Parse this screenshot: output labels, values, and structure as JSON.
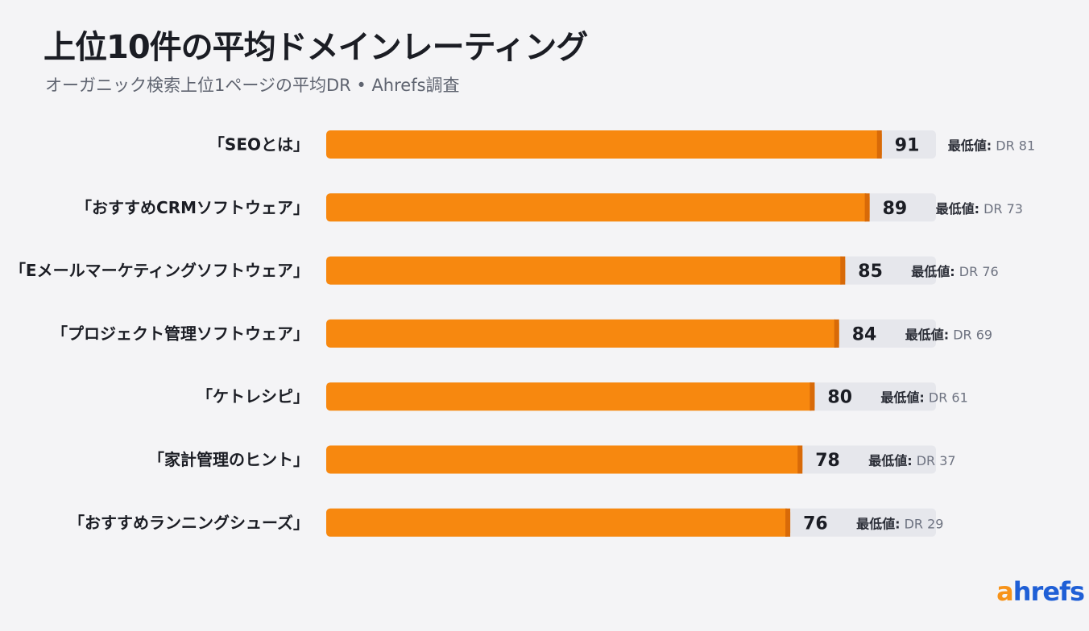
{
  "chart_data": {
    "type": "bar",
    "orientation": "horizontal",
    "title": "上位10件の平均ドメインレーティング",
    "subtitle": "オーガニック検索上位1ページの平均DR • Ahrefs調査",
    "categories": [
      "「SEOとは」",
      "「おすすめCRMソフトウェア」",
      "「Eメールマーケティングソフトウェア」",
      "「プロジェクト管理ソフトウェア」",
      "「ケトレシピ」",
      "「家計管理のヒント」",
      "「おすすめランニングシューズ」"
    ],
    "values": [
      91,
      89,
      85,
      84,
      80,
      78,
      76
    ],
    "min_label": "最低値:",
    "min_values": [
      "DR 81",
      "DR 73",
      "DR 76",
      "DR 69",
      "DR 61",
      "DR 37",
      "DR 29"
    ],
    "xlim": [
      0,
      100
    ],
    "grid": false,
    "legend": "none",
    "colors": {
      "bar": "#f7880f",
      "bar_end": "#d86a08",
      "track": "#e6e7ec",
      "value_text": "#1b1d24",
      "min_text": "#2a2d36",
      "min_value_text": "#6d7280"
    }
  },
  "logo": {
    "first_letter": "a",
    "rest": "hrefs"
  }
}
